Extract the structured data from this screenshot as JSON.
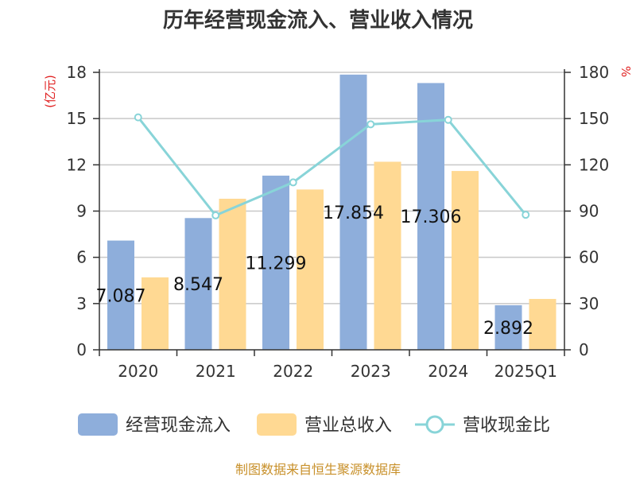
{
  "chart_data": {
    "type": "bar",
    "title": "历年经营现金流入、营业收入情况",
    "categories": [
      "2020",
      "2021",
      "2022",
      "2023",
      "2024",
      "2025Q1"
    ],
    "y_left_unit": "(亿元)",
    "y_right_unit": "%",
    "y_left_ticks": [
      "0",
      "3",
      "6",
      "9",
      "12",
      "15",
      "18"
    ],
    "y_right_ticks": [
      "0",
      "30",
      "60",
      "90",
      "120",
      "150",
      "180"
    ],
    "ylim_left": [
      0,
      18
    ],
    "ylim_right": [
      0,
      180
    ],
    "grid": true,
    "legend_position": "bottom",
    "series": [
      {
        "name": "经营现金流入",
        "type": "bar",
        "axis": "left",
        "color": "#8eaedb",
        "values": [
          7.087,
          8.547,
          11.299,
          17.854,
          17.306,
          2.892
        ],
        "labels": [
          "7.087",
          "8.547",
          "11.299",
          "17.854",
          "17.306",
          "2.892"
        ]
      },
      {
        "name": "营业总收入",
        "type": "bar",
        "axis": "left",
        "color": "#ffd993",
        "values": [
          4.7,
          9.8,
          10.4,
          12.2,
          11.6,
          3.3
        ]
      },
      {
        "name": "营收现金比",
        "type": "line",
        "axis": "right",
        "color": "#88d4d8",
        "values": [
          150.8,
          87.2,
          108.6,
          146.3,
          149.2,
          87.6
        ]
      }
    ],
    "source": "制图数据来自恒生聚源数据库"
  }
}
